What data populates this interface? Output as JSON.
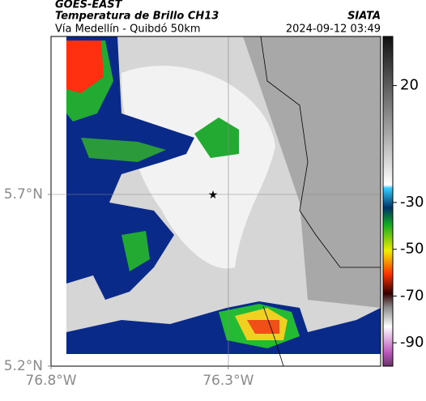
{
  "header": {
    "title": "GOES-EAST",
    "subtitle": "Temperatura de Brillo CH13",
    "location": "Vía Medellín - Quibdó 50km",
    "source": "SIATA",
    "datetime": "2024-09-12 03:49"
  },
  "map": {
    "xlim": [
      -76.8,
      -75.87
    ],
    "ylim": [
      5.2,
      6.16
    ],
    "xticks": [
      {
        "value": -76.8,
        "label": "76.8°W"
      },
      {
        "value": -76.3,
        "label": "76.3°W"
      }
    ],
    "yticks": [
      {
        "value": 5.7,
        "label": "5.7°N"
      },
      {
        "value": 5.2,
        "label": "5.2°N"
      }
    ],
    "colorbar": {
      "lim": [
        -100,
        41
      ],
      "ticks": [
        20,
        -30,
        -50,
        -70,
        -90
      ]
    }
  }
}
